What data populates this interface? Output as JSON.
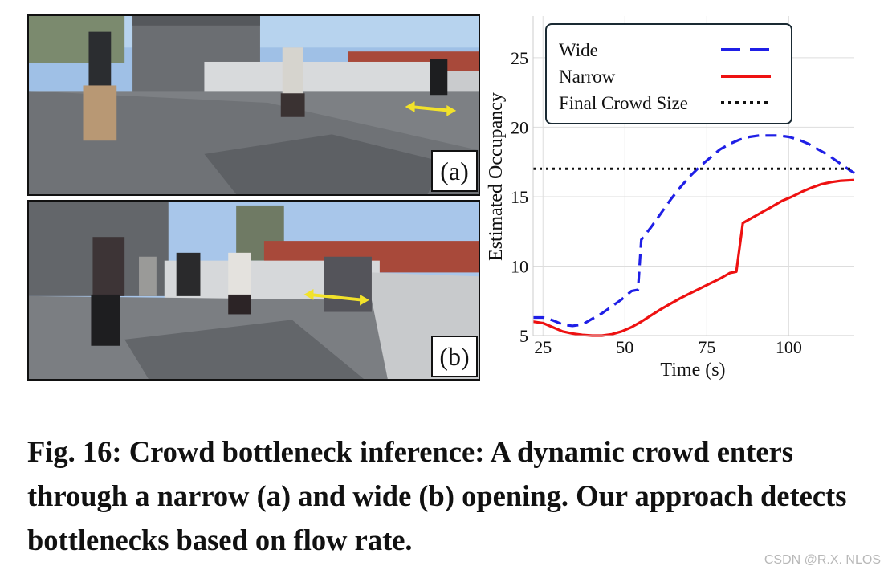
{
  "photos": {
    "a": {
      "label": "(a)"
    },
    "b": {
      "label": "(b)"
    }
  },
  "chart_data": {
    "type": "line",
    "title": "",
    "xlabel": "Time (s)",
    "ylabel": "Estimated Occupancy",
    "xlim": [
      22,
      120
    ],
    "ylim": [
      5,
      28
    ],
    "xticks": [
      25,
      50,
      75,
      100
    ],
    "yticks": [
      5,
      10,
      15,
      20,
      25
    ],
    "grid": true,
    "legend_position": "top-left",
    "series": [
      {
        "name": "Wide",
        "color": "#1f1fe6",
        "style": "dashed",
        "x": [
          22,
          25,
          28,
          31,
          34,
          37,
          40,
          43,
          46,
          49,
          52,
          54,
          55,
          58,
          61,
          64,
          67,
          70,
          73,
          76,
          79,
          82,
          85,
          88,
          91,
          94,
          97,
          100,
          103,
          106,
          109,
          112,
          115,
          118,
          120
        ],
        "y": [
          6.3,
          6.3,
          6.1,
          5.8,
          5.7,
          5.8,
          6.2,
          6.6,
          7.1,
          7.6,
          8.2,
          8.3,
          11.9,
          12.8,
          13.8,
          14.8,
          15.7,
          16.5,
          17.2,
          17.8,
          18.4,
          18.8,
          19.1,
          19.3,
          19.4,
          19.4,
          19.4,
          19.3,
          19.1,
          18.8,
          18.4,
          18.0,
          17.5,
          17.0,
          16.7
        ]
      },
      {
        "name": "Narrow",
        "color": "#ee1111",
        "style": "solid",
        "x": [
          22,
          25,
          28,
          31,
          34,
          37,
          40,
          43,
          46,
          49,
          52,
          55,
          58,
          61,
          64,
          67,
          70,
          73,
          76,
          79,
          82,
          84,
          86,
          89,
          92,
          95,
          98,
          101,
          104,
          107,
          110,
          113,
          116,
          120
        ],
        "y": [
          6.0,
          5.9,
          5.6,
          5.3,
          5.15,
          5.05,
          5.0,
          5.0,
          5.1,
          5.3,
          5.6,
          6.0,
          6.45,
          6.9,
          7.3,
          7.7,
          8.05,
          8.4,
          8.75,
          9.1,
          9.5,
          9.6,
          13.1,
          13.5,
          13.9,
          14.3,
          14.7,
          15.0,
          15.35,
          15.65,
          15.9,
          16.05,
          16.15,
          16.2
        ]
      },
      {
        "name": "Final Crowd Size",
        "color": "#111111",
        "style": "dotted",
        "x": [
          22,
          120
        ],
        "y": [
          17,
          17
        ]
      }
    ]
  },
  "caption": "Fig. 16: Crowd bottleneck inference: A dynamic crowd enters through a narrow (a) and wide (b) opening. Our approach detects bottlenecks based on flow rate.",
  "watermark": "CSDN @R.X. NLOS"
}
